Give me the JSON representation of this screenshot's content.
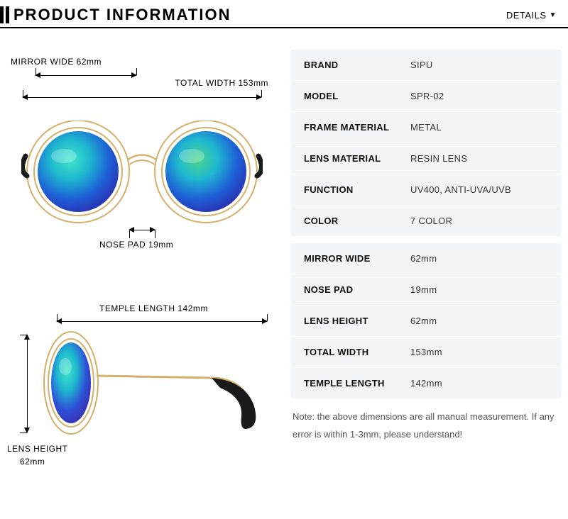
{
  "header": {
    "title": "PRODUCT INFORMATION",
    "details": "DETAILS"
  },
  "labels": {
    "mirror_wide": "MIRROR WIDE 62mm",
    "total_width": "TOTAL WIDTH 153mm",
    "nose_pad": "NOSE PAD 19mm",
    "temple_length": "TEMPLE LENGTH 142mm",
    "lens_height_1": "LENS HEIGHT",
    "lens_height_2": "62mm"
  },
  "specs1": [
    {
      "k": "BRAND",
      "v": "SIPU"
    },
    {
      "k": "MODEL",
      "v": "SPR-02"
    },
    {
      "k": "FRAME MATERIAL",
      "v": "METAL"
    },
    {
      "k": "LENS MATERIAL",
      "v": "RESIN LENS"
    },
    {
      "k": "FUNCTION",
      "v": "UV400, ANTI-UVA/UVB"
    },
    {
      "k": "COLOR",
      "v": "7 COLOR"
    }
  ],
  "specs2": [
    {
      "k": "MIRROR WIDE",
      "v": "62mm"
    },
    {
      "k": "NOSE PAD",
      "v": "19mm"
    },
    {
      "k": "LENS HEIGHT",
      "v": "62mm"
    },
    {
      "k": "TOTAL WIDTH",
      "v": "153mm"
    },
    {
      "k": "TEMPLE LENGTH",
      "v": "142mm"
    }
  ],
  "note": "Note: the above dimensions are all manual measurement. If any error is within 1-3mm, please understand!",
  "colors": {
    "lens_gradient_1": "#1fd6c4",
    "lens_gradient_2": "#1e5fd6",
    "lens_gradient_3": "#2a2fb0",
    "frame_gold": "#d4b06a",
    "frame_gold_light": "#e8d19a",
    "temple_black": "#1a1a1a",
    "table_bg": "#f3f6f8"
  }
}
